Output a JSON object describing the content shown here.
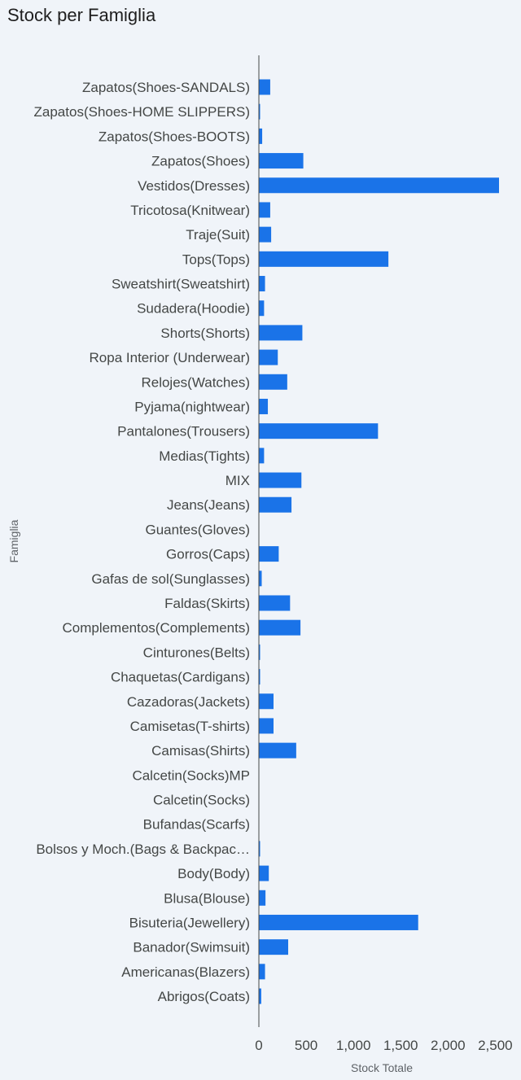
{
  "chart_data": {
    "type": "bar",
    "orientation": "horizontal",
    "title": "Stock per Famiglia",
    "xlabel": "Stock Totale",
    "ylabel": "Famiglia",
    "xlim": [
      0,
      2600
    ],
    "xticks": [
      0,
      500,
      1000,
      1500,
      2000,
      2500
    ],
    "xtick_labels": [
      "0",
      "500",
      "1,000",
      "1,500",
      "2,000",
      "2,500"
    ],
    "grid": false,
    "bar_color": "#1a73e8",
    "categories": [
      "Zapatos(Shoes-SANDALS)",
      "Zapatos(Shoes-HOME SLIPPERS)",
      "Zapatos(Shoes-BOOTS)",
      "Zapatos(Shoes)",
      "Vestidos(Dresses)",
      "Tricotosa(Knitwear)",
      "Traje(Suit)",
      "Tops(Tops)",
      "Sweatshirt(Sweatshirt)",
      "Sudadera(Hoodie)",
      "Shorts(Shorts)",
      "Ropa Interior (Underwear)",
      "Relojes(Watches)",
      "Pyjama(nightwear)",
      "Pantalones(Trousers)",
      "Medias(Tights)",
      "MIX",
      "Jeans(Jeans)",
      "Guantes(Gloves)",
      "Gorros(Caps)",
      "Gafas de sol(Sunglasses)",
      "Faldas(Skirts)",
      "Complementos(Complements)",
      "Cinturones(Belts)",
      "Chaquetas(Cardigans)",
      "Cazadoras(Jackets)",
      "Camisetas(T-shirts)",
      "Camisas(Shirts)",
      "Calcetin(Socks)MP",
      "Calcetin(Socks)",
      "Bufandas(Scarfs)",
      "Bolsos y Moch.(Bags & Backpac…",
      "Body(Body)",
      "Blusa(Blouse)",
      "Bisuteria(Jewellery)",
      "Banador(Swimsuit)",
      "Americanas(Blazers)",
      "Abrigos(Coats)"
    ],
    "values": [
      120,
      2,
      35,
      470,
      2540,
      120,
      130,
      1370,
      65,
      55,
      460,
      200,
      300,
      95,
      1260,
      55,
      450,
      345,
      0,
      210,
      30,
      330,
      440,
      8,
      5,
      155,
      155,
      395,
      0,
      0,
      0,
      12,
      105,
      70,
      1685,
      310,
      65,
      25
    ]
  }
}
